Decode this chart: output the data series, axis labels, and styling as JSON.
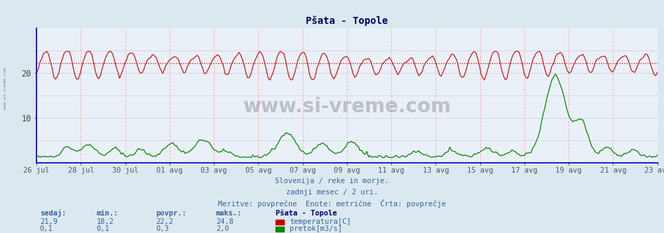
{
  "title": "Pšata - Topole",
  "bg_color": "#dce8f0",
  "plot_bg_color": "#eaf0f8",
  "grid_color_v": "#ffaaaa",
  "grid_color_h": "#ccccdd",
  "x_labels": [
    "26 jul",
    "28 jul",
    "30 jul",
    "01 avg",
    "03 avg",
    "05 avg",
    "07 avg",
    "09 avg",
    "11 avg",
    "13 avg",
    "15 avg",
    "17 avg",
    "19 avg",
    "21 avg",
    "23 avg"
  ],
  "ylim": [
    0,
    30
  ],
  "yticks": [
    10,
    20
  ],
  "avg_line_value": 22.2,
  "avg_line_color": "#cc0000",
  "temp_color": "#cc0000",
  "flow_color": "#008800",
  "temp_min": 18.2,
  "temp_max": 24.8,
  "temp_avg": 22.2,
  "flow_min": 0.1,
  "flow_max": 2.0,
  "flow_avg": 0.3,
  "temp_current": "21,9",
  "flow_current": "0,1",
  "temp_min_s": "18,2",
  "flow_min_s": "0,1",
  "temp_avg_s": "22,2",
  "flow_avg_s": "0,3",
  "temp_max_s": "24,8",
  "flow_max_s": "2,0",
  "subtitle1": "Slovenija / reke in morje.",
  "subtitle2": "zadnji mesec / 2 uri.",
  "subtitle3": "Meritve: povprečne  Enote: metrične  Črta: povprečje",
  "legend_title": "Pšata - Topole",
  "label_color": "#336699",
  "title_color": "#000066",
  "watermark": "www.si-vreme.com",
  "n_points": 360,
  "flow_scale": 15.0
}
